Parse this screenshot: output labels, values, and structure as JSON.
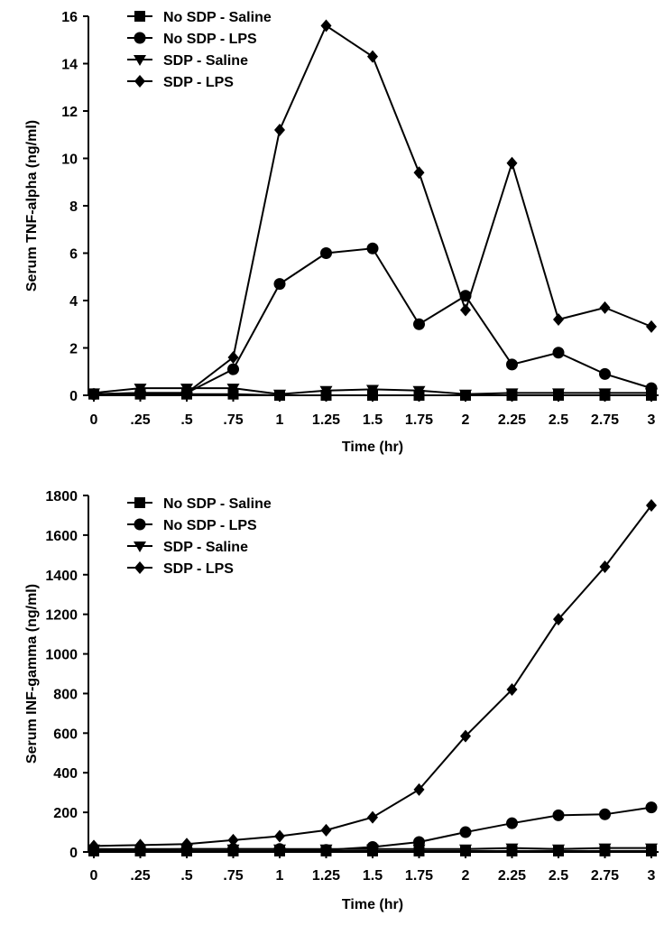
{
  "chart_data": [
    {
      "type": "line",
      "title": "",
      "xlabel": "Time (hr)",
      "ylabel": "Serum TNF-alpha (ng/ml)",
      "x_tick_labels": [
        "0",
        ".25",
        ".5",
        ".75",
        "1",
        "1.25",
        "1.5",
        "1.75",
        "2",
        "2.25",
        "2.5",
        "2.75",
        "3"
      ],
      "y_ticks": [
        0,
        2,
        4,
        6,
        8,
        10,
        12,
        14,
        16
      ],
      "xlim": [
        0,
        3
      ],
      "ylim": [
        0,
        16
      ],
      "grid": false,
      "legend_position": "top-left",
      "x": [
        0,
        0.25,
        0.5,
        0.75,
        1,
        1.25,
        1.5,
        1.75,
        2,
        2.25,
        2.5,
        2.75,
        3
      ],
      "series": [
        {
          "name": "No SDP - Saline",
          "marker": "square",
          "values": [
            0.05,
            0.05,
            0.05,
            0.05,
            0.0,
            0.0,
            0.0,
            0.0,
            0.0,
            0.0,
            0.0,
            0.0,
            0.0
          ]
        },
        {
          "name": "No SDP - LPS",
          "marker": "circle",
          "values": [
            0.05,
            0.1,
            0.1,
            1.1,
            4.7,
            6.0,
            6.2,
            3.0,
            4.2,
            1.3,
            1.8,
            0.9,
            0.3
          ]
        },
        {
          "name": "SDP - Saline",
          "marker": "triangle-down",
          "values": [
            0.1,
            0.3,
            0.3,
            0.3,
            0.05,
            0.2,
            0.25,
            0.2,
            0.05,
            0.1,
            0.1,
            0.1,
            0.1
          ]
        },
        {
          "name": "SDP - LPS",
          "marker": "diamond",
          "values": [
            0.05,
            0.1,
            0.1,
            1.6,
            11.2,
            15.6,
            14.3,
            9.4,
            3.6,
            9.8,
            3.2,
            3.7,
            2.9
          ]
        }
      ]
    },
    {
      "type": "line",
      "title": "",
      "xlabel": "Time (hr)",
      "ylabel": "Serum INF-gamma (ng/ml)",
      "x_tick_labels": [
        "0",
        ".25",
        ".5",
        ".75",
        "1",
        "1.25",
        "1.5",
        "1.75",
        "2",
        "2.25",
        "2.5",
        "2.75",
        "3"
      ],
      "y_ticks": [
        0,
        200,
        400,
        600,
        800,
        1000,
        1200,
        1400,
        1600,
        1800
      ],
      "xlim": [
        0,
        3
      ],
      "ylim": [
        0,
        1800
      ],
      "grid": false,
      "legend_position": "top-left",
      "x": [
        0,
        0.25,
        0.5,
        0.75,
        1,
        1.25,
        1.5,
        1.75,
        2,
        2.25,
        2.5,
        2.75,
        3
      ],
      "series": [
        {
          "name": "No SDP - Saline",
          "marker": "square",
          "values": [
            5,
            5,
            5,
            5,
            5,
            5,
            5,
            5,
            5,
            5,
            5,
            5,
            5
          ]
        },
        {
          "name": "No SDP - LPS",
          "marker": "circle",
          "values": [
            10,
            12,
            15,
            15,
            15,
            10,
            25,
            50,
            100,
            145,
            185,
            190,
            225
          ]
        },
        {
          "name": "SDP - Saline",
          "marker": "triangle-down",
          "values": [
            15,
            15,
            15,
            15,
            15,
            15,
            15,
            15,
            15,
            20,
            15,
            20,
            20
          ]
        },
        {
          "name": "SDP - LPS",
          "marker": "diamond",
          "values": [
            30,
            35,
            40,
            60,
            80,
            110,
            175,
            315,
            585,
            820,
            1175,
            1440,
            1750
          ]
        }
      ]
    }
  ]
}
